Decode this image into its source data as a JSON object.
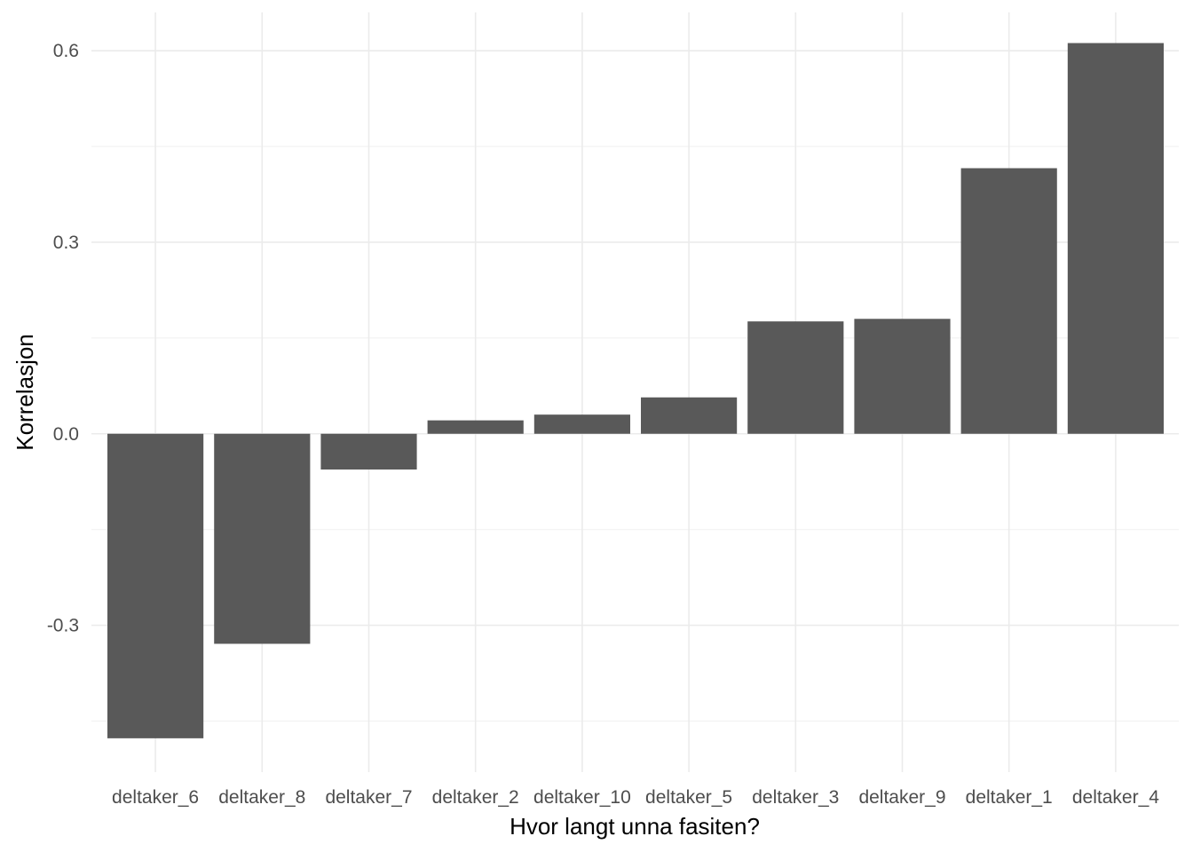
{
  "chart_data": {
    "type": "bar",
    "categories": [
      "deltaker_6",
      "deltaker_8",
      "deltaker_7",
      "deltaker_2",
      "deltaker_10",
      "deltaker_5",
      "deltaker_3",
      "deltaker_9",
      "deltaker_1",
      "deltaker_4"
    ],
    "values": [
      -0.477,
      -0.329,
      -0.056,
      0.021,
      0.03,
      0.057,
      0.176,
      0.18,
      0.416,
      0.612
    ],
    "xlabel": "Hvor langt unna fasiten?",
    "ylabel": "Korrelasjon",
    "ylim": [
      -0.53,
      0.66
    ],
    "y_ticks": [
      -0.3,
      0.0,
      0.3,
      0.6
    ],
    "y_tick_labels": [
      "-0.3",
      "0.0",
      "0.3",
      "0.6"
    ],
    "grid": true,
    "theme": "minimal",
    "bar_color": "#595959"
  }
}
